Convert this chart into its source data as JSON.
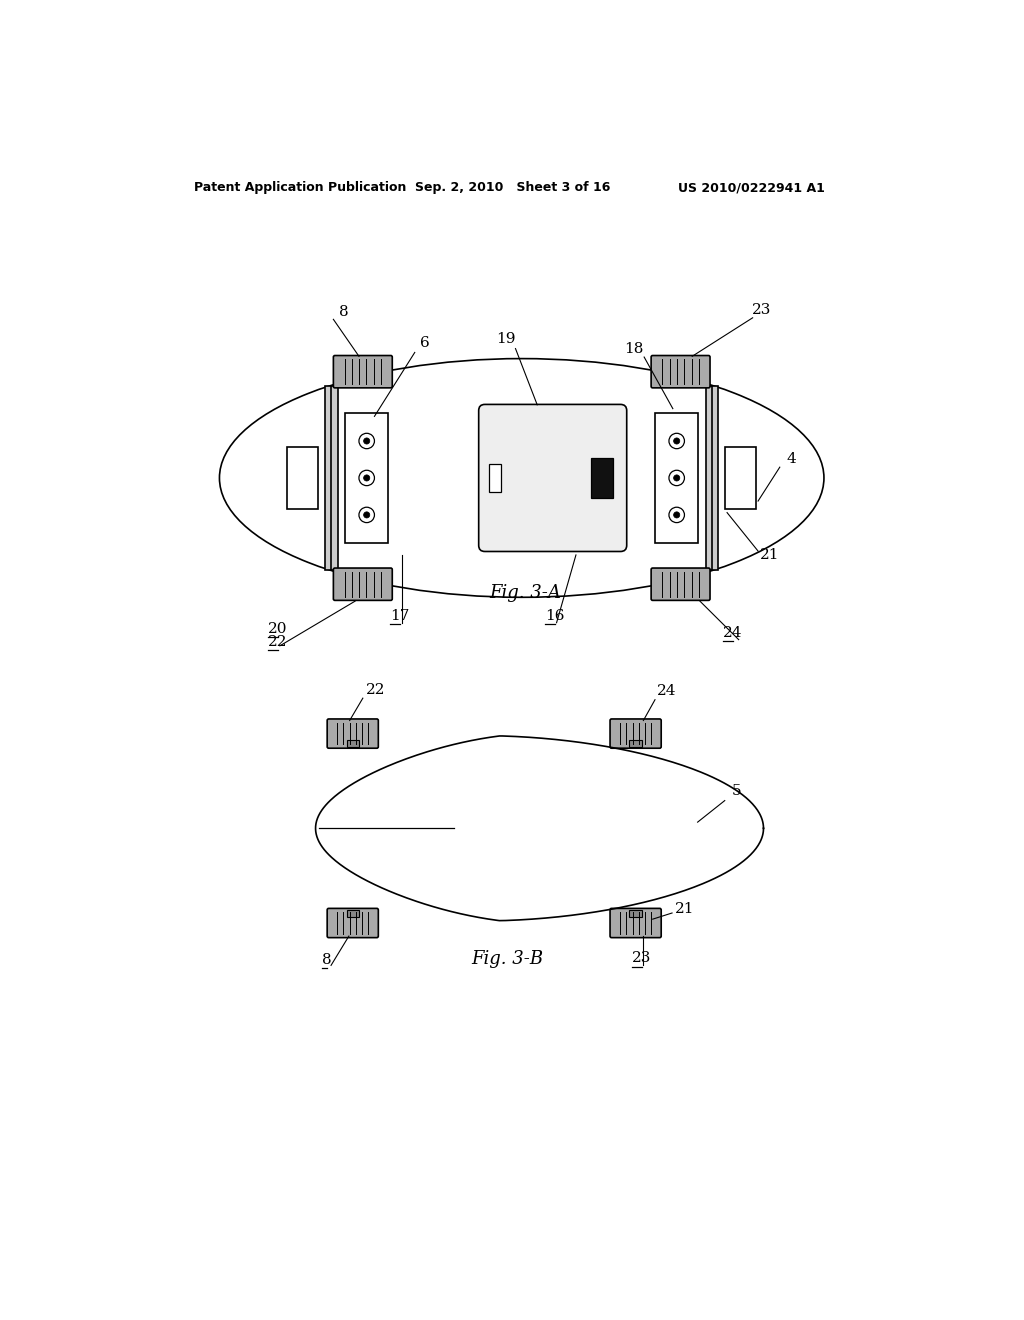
{
  "bg_color": "#ffffff",
  "line_color": "#000000",
  "header_left": "Patent Application Publication",
  "header_mid": "Sep. 2, 2010   Sheet 3 of 16",
  "header_right": "US 2010/0222941 A1",
  "fig_a_caption": "Fig. 3-A",
  "fig_b_caption": "Fig. 3-B",
  "lw_main": 1.2,
  "lw_thin": 0.8,
  "wheel_fill": "#aaaaaa",
  "block_fill": "#dddddd",
  "bat_fill": "#eeeeee"
}
